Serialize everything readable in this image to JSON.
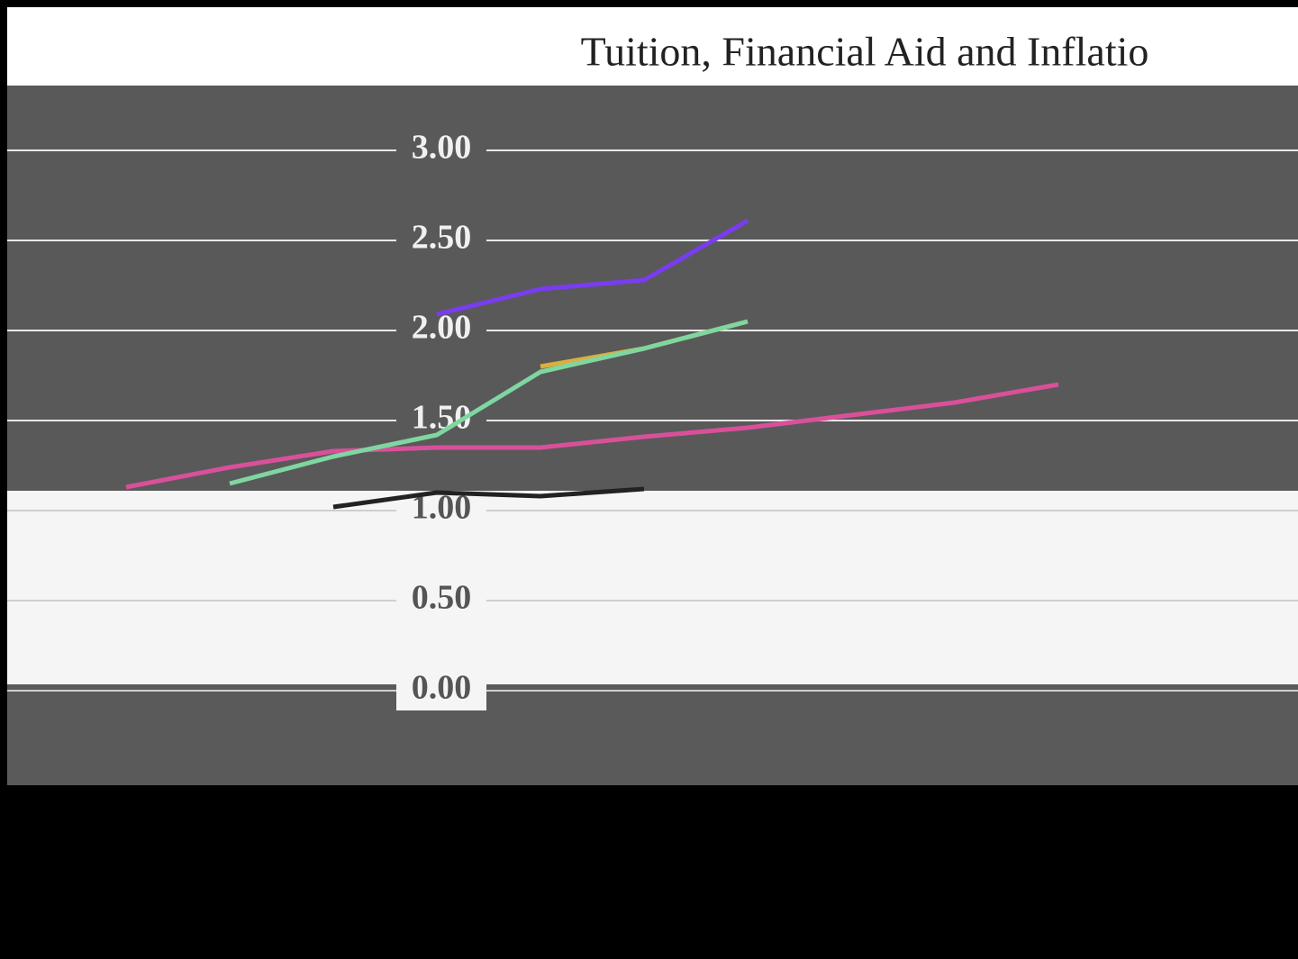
{
  "chart_data": {
    "type": "line",
    "title": "Tuition, Financial Aid and Inflatio",
    "categories": [
      null,
      null,
      null,
      null,
      null,
      null,
      null,
      null,
      null,
      null
    ],
    "series": [
      {
        "color": "#d9509a",
        "values": [
          1.13,
          1.24,
          1.33,
          1.35,
          1.35,
          1.41,
          1.46,
          1.53,
          1.6,
          1.7
        ]
      },
      {
        "color": "#7a3cf0",
        "values": [
          null,
          null,
          null,
          2.09,
          2.23,
          2.28,
          2.61,
          null,
          null,
          null
        ]
      },
      {
        "color": "#d8b040",
        "values": [
          null,
          null,
          null,
          null,
          1.8,
          1.9,
          2.05,
          null,
          null,
          null
        ]
      },
      {
        "color": "#7fd6a0",
        "values": [
          null,
          1.15,
          1.3,
          1.42,
          1.77,
          1.9,
          2.05,
          null,
          null,
          null
        ]
      },
      {
        "color": "#222222",
        "values": [
          null,
          null,
          1.02,
          1.1,
          1.08,
          1.12,
          null,
          null,
          null,
          null
        ]
      }
    ],
    "ylim": [
      0,
      3.2
    ],
    "yticks": [
      {
        "value": 0,
        "label": "0.00"
      },
      {
        "value": 0.5,
        "label": "0.50"
      },
      {
        "value": 1,
        "label": "1.00"
      },
      {
        "value": 1.5,
        "label": "1.50"
      },
      {
        "value": 2,
        "label": "2.00"
      },
      {
        "value": 2.5,
        "label": "2.50"
      },
      {
        "value": 3,
        "label": "3.00"
      }
    ],
    "grid": true
  }
}
